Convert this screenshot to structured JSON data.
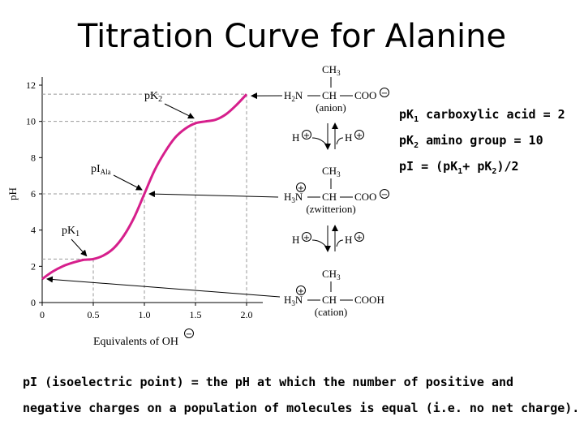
{
  "title": "Titration Curve for Alanine",
  "chart_data": {
    "type": "line",
    "title": "",
    "xlabel": "Equivalents of OH",
    "ylabel": "pH",
    "xlim": [
      0,
      2.0
    ],
    "ylim": [
      0,
      12
    ],
    "x_ticks": [
      "0",
      "0.5",
      "1.0",
      "1.5",
      "2.0"
    ],
    "y_ticks": [
      "0",
      "2",
      "4",
      "6",
      "8",
      "10",
      "12"
    ],
    "series": [
      {
        "x": [
          0,
          0.1,
          0.2,
          0.3,
          0.4,
          0.5,
          0.6,
          0.7,
          0.8,
          0.9,
          1.0,
          1.1,
          1.2,
          1.3,
          1.4,
          1.5,
          1.6,
          1.7,
          1.8,
          1.9,
          2.0
        ],
        "y": [
          1.3,
          1.7,
          2.0,
          2.2,
          2.35,
          2.4,
          2.6,
          3.0,
          3.7,
          4.7,
          6.0,
          7.3,
          8.3,
          9.1,
          9.6,
          9.9,
          10.0,
          10.1,
          10.4,
          10.9,
          11.5
        ]
      }
    ],
    "annotations": {
      "pK1": "pK",
      "pK1_sub": "1",
      "pK2": "pK",
      "pK2_sub": "2",
      "pI": "pI",
      "pI_sub": "Ala",
      "guide_lines": [
        {
          "x": 0.5,
          "y": 2.4
        },
        {
          "x": 1.0,
          "y": 6.0
        },
        {
          "x": 1.5,
          "y": 10.0
        },
        {
          "x": 2.0,
          "y": 11.5
        }
      ]
    },
    "grid": false,
    "legend": "none"
  },
  "structures": {
    "anion": {
      "ch3": "CH",
      "ch3_sub": "3",
      "amine": "H",
      "amine_sub": "2",
      "amine_n": "N",
      "ch": "CH",
      "coo": "COO",
      "charge": "−",
      "label": "(anion)"
    },
    "proton_exchange_top": {
      "h_left": "H",
      "h_right": "H",
      "charge": "+"
    },
    "zwitterion": {
      "ch3": "CH",
      "ch3_sub": "3",
      "amine": "H",
      "amine_sub": "3",
      "amine_n": "N",
      "n_charge": "+",
      "ch": "CH",
      "coo": "COO",
      "charge": "−",
      "label": "(zwitterion)"
    },
    "proton_exchange_bottom": {
      "h_left": "H",
      "h_right": "H",
      "charge": "+"
    },
    "cation": {
      "ch3": "CH",
      "ch3_sub": "3",
      "amine": "H",
      "amine_sub": "3",
      "amine_n": "N",
      "n_charge": "+",
      "ch": "CH",
      "cooh": "COOH",
      "label": "(cation)"
    }
  },
  "notes": {
    "pk1_prefix": "pK",
    "pk1_sub": "1",
    "pk1_text": " carboxylic acid = 2",
    "pk2_prefix": "pK",
    "pk2_sub": "2",
    "pk2_text": " amino group = 10",
    "pi_a": "pI = (pK",
    "pi_sub1": "1",
    "pi_b": "+ pK",
    "pi_sub2": "2",
    "pi_c": ")/2",
    "definition_line1": "pI (isoelectric point) = the pH at which the number of positive and",
    "definition_line2": "negative charges on a population of molecules is equal (i.e. no net charge)."
  },
  "colors": {
    "curve": "#d61f8c",
    "axis": "#000000",
    "guide": "#999999",
    "text": "#000000"
  }
}
